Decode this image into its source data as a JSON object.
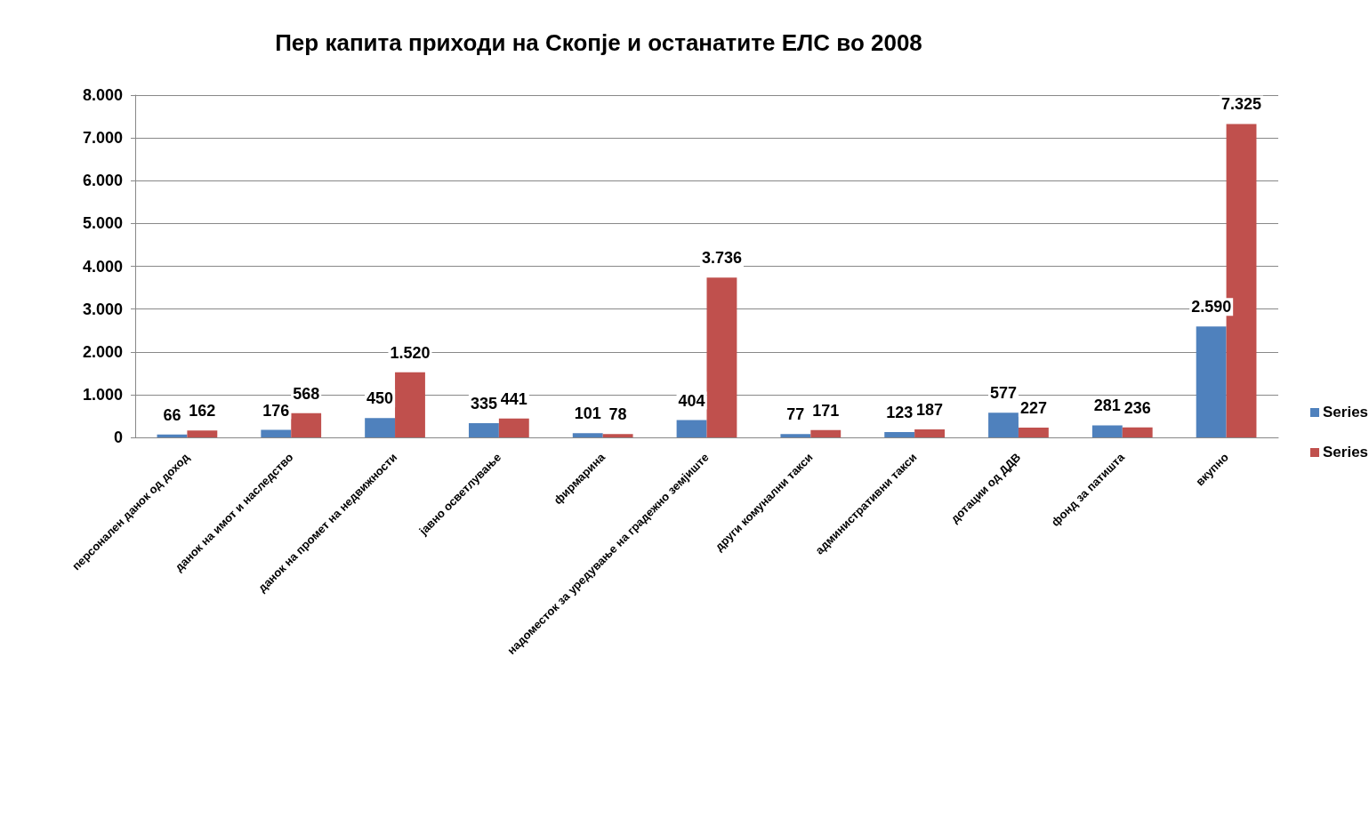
{
  "chart_data": {
    "type": "bar",
    "title": "Пер капита приходи на Скопје и останатите ЕЛС во 2008",
    "categories": [
      "персонален данок од доход",
      "данок на имот и наследство",
      "данок на промет на недвижности",
      "јавно осветлување",
      "фирмарина",
      "надоместок за уредување на градежно земјиште",
      "други комунални такси",
      "административни такси",
      "дотации од ДДВ",
      "фонд за патишта",
      "вкупно"
    ],
    "series": [
      {
        "name": "Series",
        "color": "#4f81bd",
        "values": [
          66,
          176,
          450,
          335,
          101,
          404,
          77,
          123,
          577,
          281,
          2590
        ],
        "value_labels": [
          "66",
          "176",
          "450",
          "335",
          "101",
          "404",
          "77",
          "123",
          "577",
          "281",
          "2.590"
        ]
      },
      {
        "name": "Series",
        "color": "#c0504d",
        "values": [
          162,
          568,
          1520,
          441,
          78,
          3736,
          171,
          187,
          227,
          236,
          7325
        ],
        "value_labels": [
          "162",
          "568",
          "1.520",
          "441",
          "78",
          "3.736",
          "171",
          "187",
          "227",
          "236",
          "7.325"
        ]
      }
    ],
    "ylim": [
      0,
      8000
    ],
    "yticks": [
      0,
      {
        "value": 1000,
        "label": "1.000"
      },
      {
        "value": 2000,
        "label": "2.000"
      },
      {
        "value": 3000,
        "label": "3.000"
      },
      {
        "value": 4000,
        "label": "4.000"
      },
      {
        "value": 5000,
        "label": "5.000"
      },
      {
        "value": 6000,
        "label": "6.000"
      },
      {
        "value": 7000,
        "label": "7.000"
      },
      {
        "value": 8000,
        "label": "8.000"
      }
    ],
    "grid": "y",
    "legend": "right"
  }
}
